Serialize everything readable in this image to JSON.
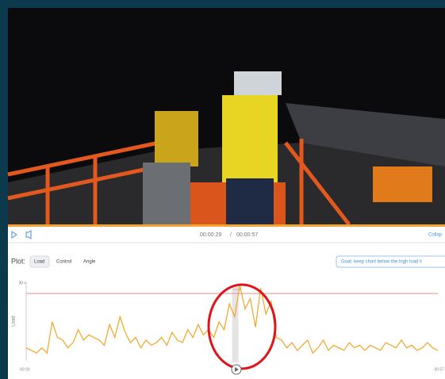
{
  "video": {
    "current_time": "00:00:29",
    "separator": "/",
    "duration": "00:00:57",
    "collapse": "Collap"
  },
  "plot": {
    "label": "Plot:",
    "buttons": [
      "Load",
      "Control",
      "Angle"
    ],
    "goal": "Goal: keep chart below the high load li",
    "y_label": "Load",
    "ylim": [
      0,
      30
    ],
    "yticks": [
      30
    ],
    "threshold": 26,
    "marker_label": "Load",
    "x_labels": [
      "00:00",
      "00:57"
    ],
    "values": [
      5,
      4,
      3,
      5,
      3,
      15,
      9,
      8,
      5,
      7,
      12,
      8,
      10,
      9,
      8,
      6,
      14,
      9,
      17,
      11,
      7,
      9,
      5,
      8,
      6,
      7,
      9,
      6,
      11,
      8,
      7,
      12,
      9,
      14,
      10,
      12,
      9,
      15,
      12,
      22,
      17,
      29,
      20,
      24,
      13,
      28,
      18,
      23,
      9,
      8,
      5,
      7,
      4,
      6,
      8,
      3,
      5,
      8,
      4,
      6,
      5,
      4,
      7,
      5,
      6,
      4,
      6,
      5,
      4,
      7,
      6,
      5,
      8,
      5,
      6,
      4,
      5,
      7,
      5,
      4
    ]
  }
}
